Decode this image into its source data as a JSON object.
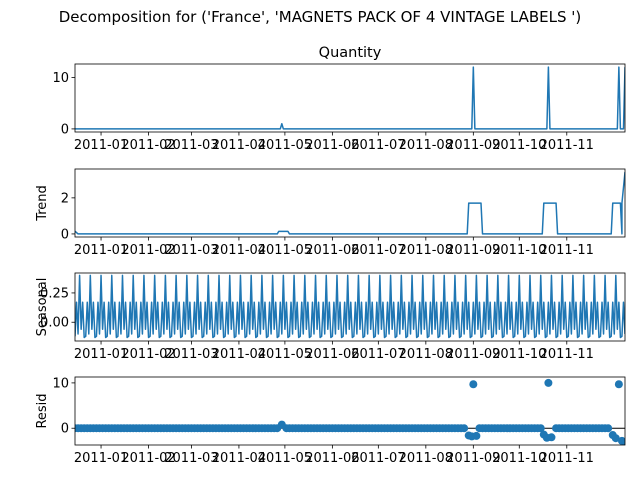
{
  "figure": {
    "suptitle": "Decomposition for ('France', 'MAGNETS PACK OF 4 VINTAGE LABELS ')"
  },
  "chart_data": [
    {
      "type": "line",
      "title": "Quantity",
      "xlabel": "",
      "ylabel": "",
      "color": "#1f77b4",
      "x_range": [
        "2010-12-15",
        "2011-12-09"
      ],
      "ylim": [
        -0.6,
        12.6
      ],
      "yticks": [
        0,
        10
      ],
      "xtick_labels": [
        "2011-01",
        "2011-02",
        "2011-03",
        "2011-04",
        "2011-05",
        "2011-06",
        "2011-07",
        "2011-08",
        "2011-09",
        "2011-10",
        "2011-11"
      ],
      "baseline": 0,
      "points": [
        {
          "x": "2011-04-29",
          "y": 1
        },
        {
          "x": "2011-09-01",
          "y": 12
        },
        {
          "x": "2011-10-20",
          "y": 12
        },
        {
          "x": "2011-12-05",
          "y": 12
        },
        {
          "x": "2011-12-09",
          "y": 12
        }
      ]
    },
    {
      "type": "line",
      "title": "",
      "xlabel": "",
      "ylabel": "Trend",
      "color": "#1f77b4",
      "x_range": [
        "2010-12-15",
        "2011-12-09"
      ],
      "ylim": [
        -0.17,
        3.6
      ],
      "yticks": [
        0,
        2
      ],
      "xtick_labels": [
        "2011-01",
        "2011-02",
        "2011-03",
        "2011-04",
        "2011-05",
        "2011-06",
        "2011-07",
        "2011-08",
        "2011-09",
        "2011-10",
        "2011-11"
      ],
      "start_value": 0.15,
      "baseline": 0,
      "plateaus": [
        {
          "from": "2011-04-27",
          "to": "2011-05-03",
          "y": 0.14
        },
        {
          "from": "2011-08-29",
          "to": "2011-09-06",
          "y": 1.71
        },
        {
          "from": "2011-10-17",
          "to": "2011-10-25",
          "y": 1.71
        },
        {
          "from": "2011-12-01",
          "to": "2011-12-06",
          "y": 1.71
        }
      ],
      "end_value": 3.43
    },
    {
      "type": "line",
      "title": "",
      "xlabel": "",
      "ylabel": "Seasonal",
      "color": "#1f77b4",
      "x_range": [
        "2010-12-15",
        "2011-12-09"
      ],
      "ylim": [
        -0.16,
        0.42
      ],
      "yticks": [
        0.0,
        0.25
      ],
      "xtick_labels": [
        "2011-01",
        "2011-02",
        "2011-03",
        "2011-04",
        "2011-05",
        "2011-06",
        "2011-07",
        "2011-08",
        "2011-09",
        "2011-10",
        "2011-11"
      ],
      "period_days": 7,
      "weekly_pattern": [
        -0.12,
        0.17,
        -0.1,
        0.4,
        -0.06,
        0.17,
        -0.13
      ]
    },
    {
      "type": "scatter",
      "title": "",
      "xlabel": "",
      "ylabel": "Resid",
      "color": "#1f77b4",
      "x_range": [
        "2010-12-15",
        "2011-12-09"
      ],
      "ylim": [
        -3.7,
        11.3
      ],
      "yticks": [
        0,
        10
      ],
      "xtick_labels": [
        "2011-01",
        "2011-02",
        "2011-03",
        "2011-04",
        "2011-05",
        "2011-06",
        "2011-07",
        "2011-08",
        "2011-09",
        "2011-10",
        "2011-11"
      ],
      "zero_line": true,
      "points": [
        {
          "x": "2011-04-29",
          "y": 0.8
        },
        {
          "x": "2011-08-29",
          "y": -1.6
        },
        {
          "x": "2011-08-31",
          "y": -1.8
        },
        {
          "x": "2011-09-01",
          "y": 9.7
        },
        {
          "x": "2011-09-03",
          "y": -1.7
        },
        {
          "x": "2011-10-17",
          "y": -1.4
        },
        {
          "x": "2011-10-19",
          "y": -2.1
        },
        {
          "x": "2011-10-20",
          "y": 10.0
        },
        {
          "x": "2011-10-22",
          "y": -2.0
        },
        {
          "x": "2011-12-01",
          "y": -1.5
        },
        {
          "x": "2011-12-03",
          "y": -2.2
        },
        {
          "x": "2011-12-05",
          "y": 9.7
        },
        {
          "x": "2011-12-07",
          "y": -2.8
        },
        {
          "x": "2011-12-09",
          "y": -3.1
        }
      ]
    }
  ]
}
